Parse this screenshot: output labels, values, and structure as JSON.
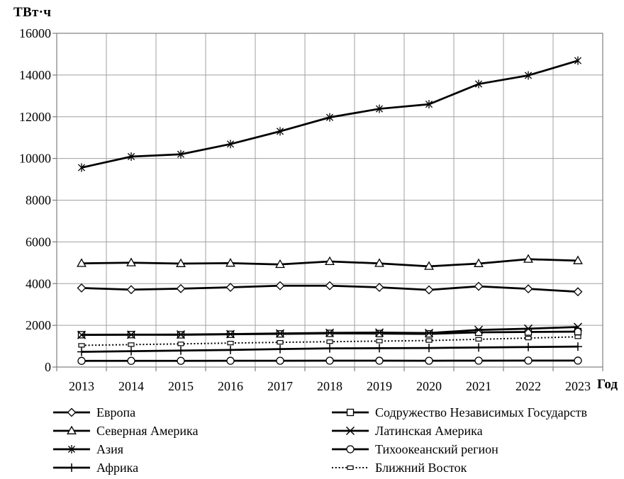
{
  "chart_data": {
    "type": "line",
    "title": "",
    "ylabel": "ТВт·ч",
    "xlabel": "Год",
    "categories": [
      "2013",
      "2014",
      "2015",
      "2016",
      "2017",
      "2018",
      "2019",
      "2020",
      "2021",
      "2022",
      "2023"
    ],
    "ylim": [
      0,
      16000
    ],
    "ytick_step": 2000,
    "grid": true,
    "legend_position": "bottom-two-columns",
    "series": [
      {
        "name": "Европа",
        "marker": "diamond",
        "line": "solid",
        "values": [
          3790,
          3710,
          3760,
          3820,
          3900,
          3900,
          3820,
          3700,
          3870,
          3750,
          3610
        ]
      },
      {
        "name": "Содружество Независимых Государств",
        "marker": "square",
        "line": "solid",
        "values": [
          1550,
          1555,
          1545,
          1570,
          1590,
          1615,
          1605,
          1590,
          1665,
          1680,
          1700
        ]
      },
      {
        "name": "Северная Америка",
        "marker": "triangle",
        "line": "solid",
        "values": [
          4970,
          5000,
          4960,
          4980,
          4920,
          5060,
          4970,
          4830,
          4960,
          5170,
          5100
        ]
      },
      {
        "name": "Латинская Америка",
        "marker": "x",
        "line": "solid",
        "values": [
          1540,
          1550,
          1560,
          1580,
          1610,
          1640,
          1650,
          1630,
          1780,
          1840,
          1920
        ]
      },
      {
        "name": "Азия",
        "marker": "asterisk",
        "line": "solid",
        "values": [
          9560,
          10090,
          10200,
          10690,
          11300,
          11970,
          12380,
          12600,
          13570,
          13980,
          14690
        ]
      },
      {
        "name": "Тихоокеанский регион",
        "marker": "circle",
        "line": "solid",
        "values": [
          295,
          296,
          298,
          300,
          302,
          305,
          304,
          302,
          306,
          310,
          308
        ]
      },
      {
        "name": "Африка",
        "marker": "plus",
        "line": "solid",
        "values": [
          730,
          760,
          790,
          820,
          860,
          895,
          905,
          915,
          940,
          960,
          980
        ]
      },
      {
        "name": "Ближний Восток",
        "marker": "dash",
        "line": "dotted",
        "values": [
          1040,
          1075,
          1110,
          1150,
          1185,
          1215,
          1245,
          1270,
          1330,
          1390,
          1450
        ]
      }
    ],
    "colors": {
      "line": "#000000",
      "marker_fill": "#ffffff",
      "grid": "#a0a0a0",
      "border": "#808080",
      "background": "#ffffff"
    }
  }
}
